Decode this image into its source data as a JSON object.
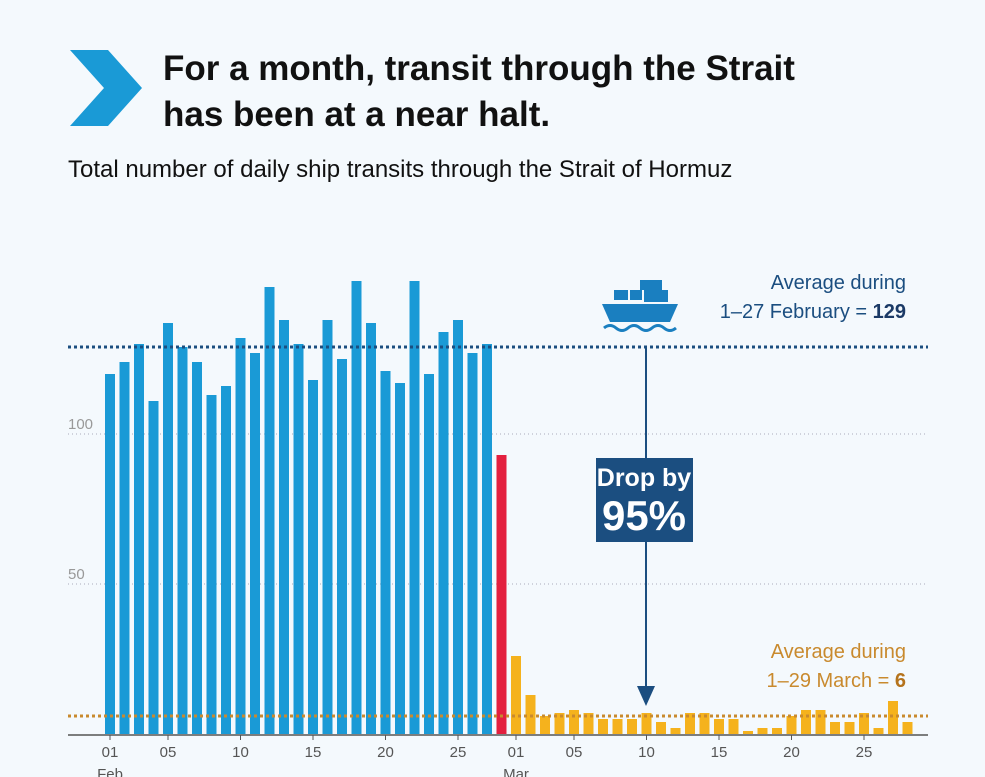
{
  "chart_data": {
    "type": "bar",
    "title": [
      "For a month, transit through the Strait",
      "has been at a near halt."
    ],
    "subtitle": "Total number of daily ship transits through the Strait of Hormuz",
    "categories": [
      "01",
      null,
      null,
      null,
      "05",
      null,
      null,
      null,
      null,
      "10",
      null,
      null,
      null,
      null,
      "15",
      null,
      null,
      null,
      null,
      "20",
      null,
      null,
      null,
      null,
      "25",
      null,
      null,
      null,
      "01",
      null,
      null,
      null,
      "05",
      null,
      null,
      null,
      null,
      "10",
      null,
      null,
      null,
      null,
      "15",
      null,
      null,
      null,
      null,
      "20",
      null,
      null,
      null,
      null,
      "25",
      null,
      null,
      null
    ],
    "months": [
      {
        "label": "Feb",
        "index": 0
      },
      {
        "label": "Mar",
        "index": 28
      }
    ],
    "values": [
      120,
      124,
      130,
      111,
      137,
      129,
      124,
      113,
      116,
      132,
      127,
      149,
      138,
      130,
      118,
      138,
      125,
      151,
      137,
      121,
      117,
      151,
      120,
      134,
      138,
      127,
      130,
      93,
      26,
      13,
      6,
      7,
      8,
      7,
      5,
      5,
      5,
      7,
      4,
      2,
      7,
      7,
      5,
      5,
      1,
      2,
      2,
      6,
      8,
      8,
      4,
      4,
      7,
      2,
      11,
      4
    ],
    "colors": [
      "#1a9ad6",
      "#1a9ad6",
      "#1a9ad6",
      "#1a9ad6",
      "#1a9ad6",
      "#1a9ad6",
      "#1a9ad6",
      "#1a9ad6",
      "#1a9ad6",
      "#1a9ad6",
      "#1a9ad6",
      "#1a9ad6",
      "#1a9ad6",
      "#1a9ad6",
      "#1a9ad6",
      "#1a9ad6",
      "#1a9ad6",
      "#1a9ad6",
      "#1a9ad6",
      "#1a9ad6",
      "#1a9ad6",
      "#1a9ad6",
      "#1a9ad6",
      "#1a9ad6",
      "#1a9ad6",
      "#1a9ad6",
      "#1a9ad6",
      "#e3203f",
      "#f5b21d",
      "#f5b21d",
      "#f5b21d",
      "#f5b21d",
      "#f5b21d",
      "#f5b21d",
      "#f5b21d",
      "#f5b21d",
      "#f5b21d",
      "#f5b21d",
      "#f5b21d",
      "#f5b21d",
      "#f5b21d",
      "#f5b21d",
      "#f5b21d",
      "#f5b21d",
      "#f5b21d",
      "#f5b21d",
      "#f5b21d",
      "#f5b21d",
      "#f5b21d",
      "#f5b21d",
      "#f5b21d",
      "#f5b21d",
      "#f5b21d",
      "#f5b21d",
      "#f5b21d",
      "#f5b21d"
    ],
    "ylim": [
      0,
      160
    ],
    "yticks": [
      50,
      100
    ],
    "grid": true,
    "averages": [
      {
        "label": [
          "Average during",
          "1–27 February ="
        ],
        "value": 129,
        "color": "#1b4e80"
      },
      {
        "label": [
          "Average during",
          "1–29 March ="
        ],
        "value": 6,
        "color": "#c98a2e"
      }
    ],
    "drop_label": [
      "Drop by",
      "95%"
    ]
  }
}
